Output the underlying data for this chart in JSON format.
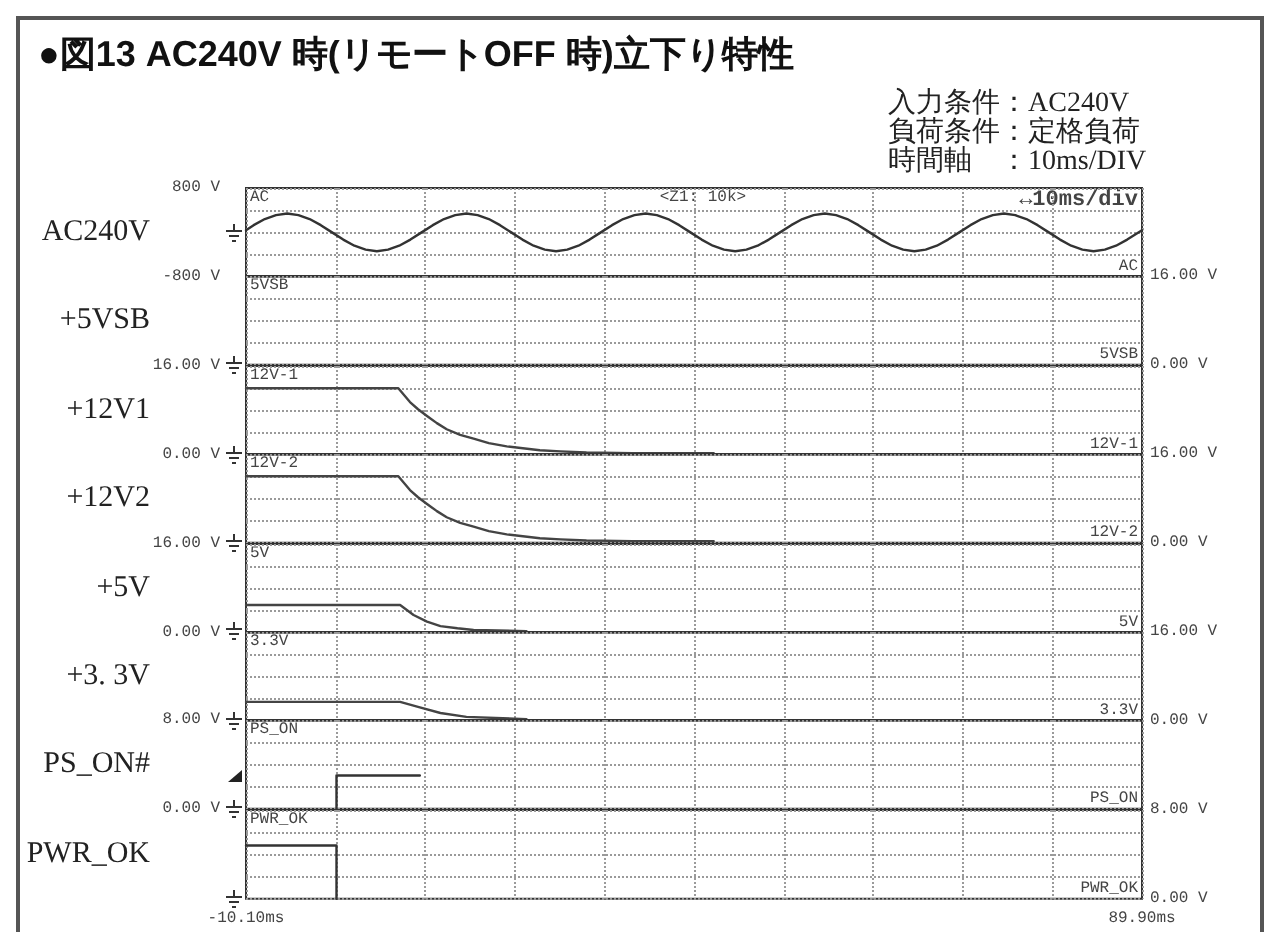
{
  "chart_data": [
    {
      "type": "line",
      "title": "●図13 AC240V 時(リモートOFF 時)立下り特性",
      "ylabel": "AC240V",
      "annotations": [
        "AC",
        "AC",
        "<Z1: 10k>",
        "↔10ms/div",
        "入力条件：AC240V",
        "負荷条件：定格負荷",
        "時間軸　：10ms/DIV"
      ],
      "xlim": [
        -10.1,
        89.9
      ],
      "xticks": [
        {
          "value": -10.1,
          "label": null
        },
        {
          "value": -0.1,
          "label": null
        },
        {
          "value": 9.9,
          "label": null
        },
        {
          "value": 19.9,
          "label": null
        },
        {
          "value": 29.9,
          "label": null
        },
        {
          "value": 39.9,
          "label": null
        },
        {
          "value": 49.9,
          "label": null
        },
        {
          "value": 59.9,
          "label": null
        },
        {
          "value": 69.9,
          "label": null
        },
        {
          "value": 79.9,
          "label": null
        },
        {
          "value": 89.9,
          "label": null
        }
      ],
      "ylim": [
        -800,
        800
      ],
      "yticks": [
        {
          "value": -800,
          "label": "-800 V"
        },
        {
          "value": -400,
          "label": null
        },
        {
          "value": 0,
          "label": null
        },
        {
          "value": 400,
          "label": null
        },
        {
          "value": 800,
          "label": "800 V"
        }
      ],
      "tick_labels": "y",
      "grid": true,
      "series": [
        {
          "color": "#333333",
          "x": [
            -10.1,
            -9.25,
            -8,
            -6.75,
            -5.5,
            -4.25,
            -3,
            -1.75,
            -0.5,
            0.75,
            2,
            3.25,
            4.5,
            5.75,
            7,
            8.25,
            9.5,
            10.75,
            12,
            13.25,
            14.5,
            15.75,
            17,
            18.25,
            19.5,
            20.75,
            22,
            23.25,
            24.5,
            25.75,
            27,
            28.25,
            29.5,
            30.75,
            32,
            33.25,
            34.5,
            35.75,
            37,
            38.25,
            39.5,
            40.75,
            42,
            43.25,
            44.5,
            45.75,
            47,
            48.25,
            49.5,
            50.75,
            52,
            53.25,
            54.5,
            55.75,
            57,
            58.25,
            59.5,
            60.75,
            62,
            63.25,
            64.5,
            65.75,
            67,
            68.25,
            69.5,
            70.75,
            72,
            73.25,
            74.5,
            75.75,
            77,
            78.25,
            79.5,
            80.75,
            82,
            83.25,
            84.5,
            85.75,
            87,
            88.25,
            89.9
          ],
          "values": [
            40,
            130,
            240,
            310,
            340,
            310,
            240,
            130,
            0,
            -130,
            -240,
            -310,
            -340,
            -310,
            -240,
            -130,
            0,
            130,
            240,
            310,
            340,
            310,
            240,
            130,
            0,
            -130,
            -240,
            -310,
            -340,
            -310,
            -240,
            -130,
            0,
            130,
            240,
            310,
            340,
            310,
            240,
            130,
            0,
            -130,
            -240,
            -310,
            -340,
            -310,
            -240,
            -130,
            0,
            130,
            240,
            310,
            340,
            310,
            240,
            130,
            0,
            -130,
            -240,
            -310,
            -340,
            -310,
            -240,
            -130,
            0,
            130,
            240,
            310,
            340,
            310,
            240,
            130,
            0,
            -130,
            -240,
            -310,
            -340,
            -310,
            -240,
            -130,
            40
          ]
        }
      ]
    },
    {
      "type": "line",
      "ylabel": "+5VSB",
      "annotations": [
        "5VSB",
        "5VSB"
      ],
      "xlim": [
        -10.1,
        89.9
      ],
      "xticks": [
        {
          "value": -10.1,
          "label": null
        },
        {
          "value": -0.1,
          "label": null
        },
        {
          "value": 9.9,
          "label": null
        },
        {
          "value": 19.9,
          "label": null
        },
        {
          "value": 29.9,
          "label": null
        },
        {
          "value": 39.9,
          "label": null
        },
        {
          "value": 49.9,
          "label": null
        },
        {
          "value": 59.9,
          "label": null
        },
        {
          "value": 69.9,
          "label": null
        },
        {
          "value": 79.9,
          "label": null
        },
        {
          "value": 89.9,
          "label": null
        }
      ],
      "ylim": [
        0,
        16
      ],
      "yticks": [
        {
          "value": 0,
          "label": "0.00 V"
        },
        {
          "value": 4,
          "label": null
        },
        {
          "value": 8,
          "label": null
        },
        {
          "value": 12,
          "label": null
        },
        {
          "value": 16,
          "label": "16.00 V"
        }
      ],
      "tick_labels": "y",
      "grid": true
    },
    {
      "type": "line",
      "ylabel": "+12V1",
      "annotations": [
        "12V-1",
        "12V-1"
      ],
      "xlim": [
        -10.1,
        89.9
      ],
      "xticks": [
        {
          "value": -10.1,
          "label": null
        },
        {
          "value": -0.1,
          "label": null
        },
        {
          "value": 9.9,
          "label": null
        },
        {
          "value": 19.9,
          "label": null
        },
        {
          "value": 29.9,
          "label": null
        },
        {
          "value": 39.9,
          "label": null
        },
        {
          "value": 49.9,
          "label": null
        },
        {
          "value": 59.9,
          "label": null
        },
        {
          "value": 69.9,
          "label": null
        },
        {
          "value": 79.9,
          "label": null
        },
        {
          "value": 89.9,
          "label": null
        }
      ],
      "ylim": [
        0,
        16
      ],
      "yticks": [
        {
          "value": 0,
          "label": "0.00 V"
        },
        {
          "value": 4,
          "label": null
        },
        {
          "value": 8,
          "label": null
        },
        {
          "value": 12,
          "label": null
        },
        {
          "value": 16,
          "label": "16.00 V"
        }
      ],
      "tick_labels": "y",
      "grid": true,
      "series": [
        {
          "color": "#444444",
          "x": [
            -10.1,
            6.9,
            8.2,
            9.1,
            10.1,
            11.2,
            12.3,
            13.8,
            15.3,
            17,
            19,
            22.7,
            25,
            27.9,
            33,
            42.1
          ],
          "values": [
            12,
            12,
            9.5,
            8.2,
            7,
            5.7,
            4.6,
            3.6,
            2.9,
            2.1,
            1.5,
            0.8,
            0.6,
            0.4,
            0.3,
            0.3
          ]
        }
      ]
    },
    {
      "type": "line",
      "ylabel": "+12V2",
      "annotations": [
        "12V-2",
        "12V-2"
      ],
      "xlim": [
        -10.1,
        89.9
      ],
      "xticks": [
        {
          "value": -10.1,
          "label": null
        },
        {
          "value": -0.1,
          "label": null
        },
        {
          "value": 9.9,
          "label": null
        },
        {
          "value": 19.9,
          "label": null
        },
        {
          "value": 29.9,
          "label": null
        },
        {
          "value": 39.9,
          "label": null
        },
        {
          "value": 49.9,
          "label": null
        },
        {
          "value": 59.9,
          "label": null
        },
        {
          "value": 69.9,
          "label": null
        },
        {
          "value": 79.9,
          "label": null
        },
        {
          "value": 89.9,
          "label": null
        }
      ],
      "ylim": [
        0,
        16
      ],
      "yticks": [
        {
          "value": 0,
          "label": "0.00 V"
        },
        {
          "value": 4,
          "label": null
        },
        {
          "value": 8,
          "label": null
        },
        {
          "value": 12,
          "label": null
        },
        {
          "value": 16,
          "label": "16.00 V"
        }
      ],
      "tick_labels": "y",
      "grid": true,
      "series": [
        {
          "color": "#444444",
          "x": [
            -10.1,
            6.9,
            8.2,
            9.1,
            10.1,
            11.2,
            12.3,
            13.8,
            15.3,
            17,
            19,
            22.7,
            25,
            27.9,
            33,
            42.1
          ],
          "values": [
            12,
            12,
            9.5,
            8.2,
            7,
            5.7,
            4.6,
            3.6,
            2.9,
            2.1,
            1.5,
            0.8,
            0.6,
            0.4,
            0.3,
            0.3
          ]
        }
      ]
    },
    {
      "type": "line",
      "ylabel": "+5V",
      "annotations": [
        "5V",
        "5V"
      ],
      "xlim": [
        -10.1,
        89.9
      ],
      "xticks": [
        {
          "value": -10.1,
          "label": null
        },
        {
          "value": -0.1,
          "label": null
        },
        {
          "value": 9.9,
          "label": null
        },
        {
          "value": 19.9,
          "label": null
        },
        {
          "value": 29.9,
          "label": null
        },
        {
          "value": 39.9,
          "label": null
        },
        {
          "value": 49.9,
          "label": null
        },
        {
          "value": 59.9,
          "label": null
        },
        {
          "value": 69.9,
          "label": null
        },
        {
          "value": 79.9,
          "label": null
        },
        {
          "value": 89.9,
          "label": null
        }
      ],
      "ylim": [
        0,
        16
      ],
      "yticks": [
        {
          "value": 0,
          "label": "0.00 V"
        },
        {
          "value": 4,
          "label": null
        },
        {
          "value": 8,
          "label": null
        },
        {
          "value": 12,
          "label": null
        },
        {
          "value": 16,
          "label": "16.00 V"
        }
      ],
      "tick_labels": "y",
      "grid": true,
      "series": [
        {
          "color": "#444444",
          "x": [
            -10.1,
            7.1,
            8.6,
            10.1,
            11.6,
            13.5,
            15.3,
            21.2
          ],
          "values": [
            5,
            5,
            3.2,
            2,
            1.2,
            0.8,
            0.5,
            0.3
          ]
        }
      ]
    },
    {
      "type": "line",
      "ylabel": "+3. 3V",
      "annotations": [
        "3.3V",
        "3.3V"
      ],
      "xlim": [
        -10.1,
        89.9
      ],
      "xticks": [
        {
          "value": -10.1,
          "label": null
        },
        {
          "value": -0.1,
          "label": null
        },
        {
          "value": 9.9,
          "label": null
        },
        {
          "value": 19.9,
          "label": null
        },
        {
          "value": 29.9,
          "label": null
        },
        {
          "value": 39.9,
          "label": null
        },
        {
          "value": 49.9,
          "label": null
        },
        {
          "value": 59.9,
          "label": null
        },
        {
          "value": 69.9,
          "label": null
        },
        {
          "value": 79.9,
          "label": null
        },
        {
          "value": 89.9,
          "label": null
        }
      ],
      "ylim": [
        0,
        16
      ],
      "yticks": [
        {
          "value": 0,
          "label": "0.00 V"
        },
        {
          "value": 4,
          "label": null
        },
        {
          "value": 8,
          "label": null
        },
        {
          "value": 12,
          "label": null
        },
        {
          "value": 16,
          "label": "16.00 V"
        }
      ],
      "tick_labels": "y",
      "grid": true,
      "series": [
        {
          "color": "#444444",
          "x": [
            -10.1,
            7.1,
            9.3,
            11.6,
            14.5,
            21.2
          ],
          "values": [
            3.4,
            3.4,
            2.4,
            1.4,
            0.7,
            0.3
          ]
        }
      ]
    },
    {
      "type": "line",
      "ylabel": "PS_ON#",
      "annotations": [
        "PS_ON",
        "PS_ON"
      ],
      "xlim": [
        -10.1,
        89.9
      ],
      "xticks": [
        {
          "value": -10.1,
          "label": null
        },
        {
          "value": -0.1,
          "label": null
        },
        {
          "value": 9.9,
          "label": null
        },
        {
          "value": 19.9,
          "label": null
        },
        {
          "value": 29.9,
          "label": null
        },
        {
          "value": 39.9,
          "label": null
        },
        {
          "value": 49.9,
          "label": null
        },
        {
          "value": 59.9,
          "label": null
        },
        {
          "value": 69.9,
          "label": null
        },
        {
          "value": 79.9,
          "label": null
        },
        {
          "value": 89.9,
          "label": null
        }
      ],
      "ylim": [
        0,
        8
      ],
      "yticks": [
        {
          "value": 0,
          "label": "0.00 V"
        },
        {
          "value": 2,
          "label": null
        },
        {
          "value": 4,
          "label": null
        },
        {
          "value": 6,
          "label": null
        },
        {
          "value": 8,
          "label": "8.00 V"
        }
      ],
      "tick_labels": "y",
      "grid": true,
      "series": [
        {
          "color": "#333333",
          "x": [
            0,
            0,
            9.3
          ],
          "values": [
            0,
            3,
            3
          ]
        }
      ]
    },
    {
      "type": "line",
      "ylabel": "PWR_OK",
      "annotations": [
        "PWR_OK",
        "PWR_OK"
      ],
      "xlim": [
        -10.1,
        89.9
      ],
      "xticks": [
        {
          "value": -10.1,
          "label": "-10.10ms"
        },
        {
          "value": -0.1,
          "label": null
        },
        {
          "value": 9.9,
          "label": null
        },
        {
          "value": 19.9,
          "label": null
        },
        {
          "value": 29.9,
          "label": null
        },
        {
          "value": 39.9,
          "label": null
        },
        {
          "value": 49.9,
          "label": null
        },
        {
          "value": 59.9,
          "label": null
        },
        {
          "value": 69.9,
          "label": null
        },
        {
          "value": 79.9,
          "label": null
        },
        {
          "value": 89.9,
          "label": "89.90ms"
        }
      ],
      "ylim": [
        0,
        8
      ],
      "yticks": [
        {
          "value": 0,
          "label": "0.00 V"
        },
        {
          "value": 2,
          "label": null
        },
        {
          "value": 4,
          "label": null
        },
        {
          "value": 6,
          "label": null
        },
        {
          "value": 8,
          "label": "8.00 V"
        }
      ],
      "grid": true,
      "series": [
        {
          "color": "#333333",
          "x": [
            -10.1,
            0,
            0
          ],
          "values": [
            4.8,
            4.8,
            0
          ]
        }
      ]
    }
  ]
}
